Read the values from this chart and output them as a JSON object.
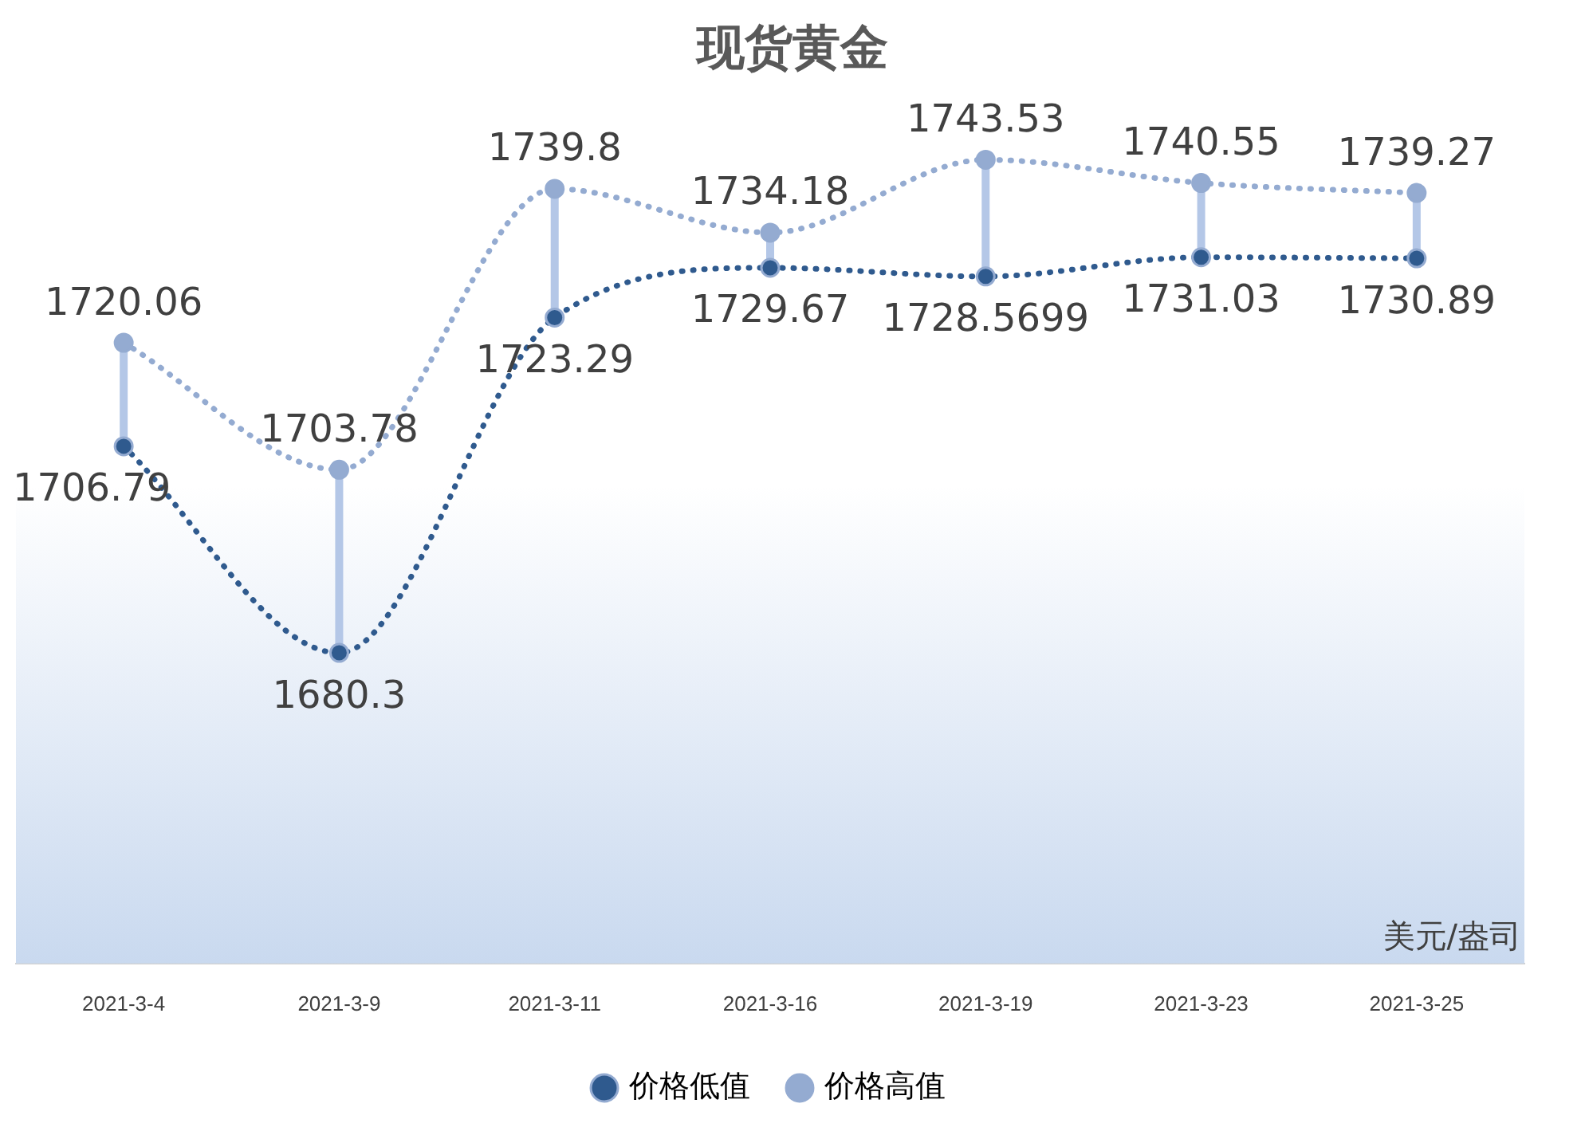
{
  "chart_data": {
    "type": "line",
    "title": "现货黄金",
    "categories": [
      "2021-3-4",
      "2021-3-9",
      "2021-3-11",
      "2021-3-16",
      "2021-3-19",
      "2021-3-23",
      "2021-3-25"
    ],
    "series": [
      {
        "name": "价格低值",
        "color": "#2f5a8e",
        "values": [
          1706.79,
          1680.3,
          1723.29,
          1729.67,
          1728.5699,
          1731.03,
          1730.89
        ]
      },
      {
        "name": "价格高值",
        "color": "#94abd1",
        "values": [
          1720.06,
          1703.78,
          1739.8,
          1734.18,
          1743.53,
          1740.55,
          1739.27
        ]
      }
    ],
    "data_labels": true,
    "legend": "bottom",
    "marker": "circle",
    "line_style": "dotted",
    "annotations": [
      "美元/盎司"
    ]
  }
}
